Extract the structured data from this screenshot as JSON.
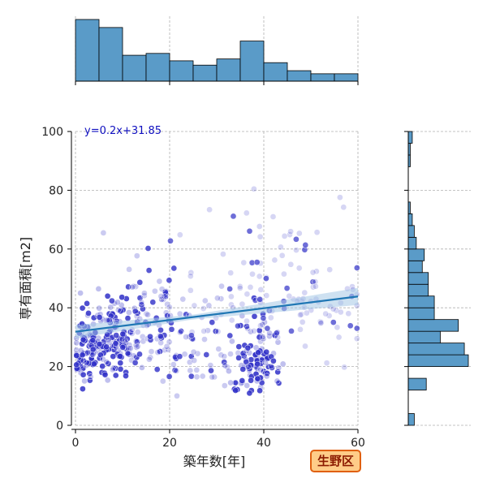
{
  "chart_data": {
    "type": "scatter",
    "xlabel": "築年数[年]",
    "ylabel": "専有面積[m2]",
    "xlim": [
      0,
      60
    ],
    "ylim": [
      0,
      100
    ],
    "xticks": [
      "0",
      "20",
      "40",
      "60"
    ],
    "yticks": [
      "0",
      "20",
      "40",
      "60",
      "80",
      "100"
    ],
    "grid": true,
    "annotation": "y=0.2x+31.85",
    "badge": "生野区",
    "regression": {
      "slope": 0.2,
      "intercept": 31.85
    },
    "colors": {
      "scatter": "#3030c8",
      "regression_line": "#1f77b4",
      "confidence_band": "#a6c8e6",
      "histogram_fill": "#5a9bc8",
      "histogram_edge": "#000000"
    },
    "x_histogram": {
      "bin_edges": [
        0,
        5,
        10,
        15,
        20,
        25,
        30,
        35,
        40,
        45,
        50,
        55,
        60
      ],
      "counts": [
        100,
        87,
        42,
        45,
        33,
        26,
        36,
        65,
        30,
        17,
        12,
        12
      ]
    },
    "y_histogram": {
      "bin_edges": [
        0,
        4,
        8,
        12,
        16,
        20,
        24,
        28,
        32,
        36,
        40,
        44,
        48,
        52,
        56,
        60,
        64,
        68,
        72,
        76,
        80,
        84,
        88,
        92,
        96,
        100
      ],
      "counts": [
        3,
        0,
        0,
        9,
        0,
        30,
        28,
        16,
        25,
        13,
        13,
        10,
        10,
        7,
        8,
        4,
        3,
        2,
        1,
        0,
        0,
        0,
        1,
        1,
        2
      ]
    },
    "points_seed": {
      "clusters": [
        {
          "cx": 2,
          "cy": 25,
          "sx": 1.5,
          "sy": 8,
          "n": 70,
          "alpha": "dark"
        },
        {
          "cx": 8,
          "cy": 28,
          "sx": 3,
          "sy": 8,
          "n": 140,
          "alpha": "dark"
        },
        {
          "cx": 15,
          "cy": 35,
          "sx": 4,
          "sy": 12,
          "n": 90,
          "alpha": "mixed"
        },
        {
          "cx": 25,
          "cy": 25,
          "sx": 6,
          "sy": 10,
          "n": 60,
          "alpha": "mixed"
        },
        {
          "cx": 38,
          "cy": 20,
          "sx": 3,
          "sy": 8,
          "n": 110,
          "alpha": "dark"
        },
        {
          "cx": 40,
          "cy": 45,
          "sx": 8,
          "sy": 15,
          "n": 90,
          "alpha": "light"
        },
        {
          "cx": 52,
          "cy": 40,
          "sx": 6,
          "sy": 15,
          "n": 40,
          "alpha": "light"
        }
      ]
    }
  }
}
